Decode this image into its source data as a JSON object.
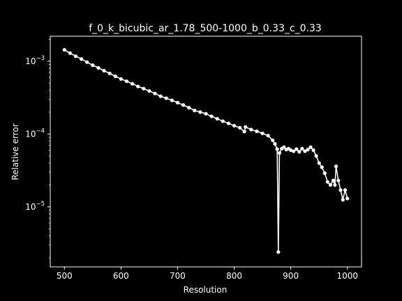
{
  "chart_data": {
    "type": "line",
    "title": "f_0_k_bicubic_ar_1.78_500-1000_b_0.33_c_0.33",
    "xlabel": "Resolution",
    "ylabel": "Relative error",
    "xlim": [
      475,
      1025
    ],
    "ylim": [
      1.5e-06,
      0.0022
    ],
    "yscale": "log",
    "x_ticks": [
      "500",
      "600",
      "700",
      "800",
      "900",
      "1000"
    ],
    "y_ticks": [
      {
        "base": "10",
        "exp": "−3",
        "value": 0.001
      },
      {
        "base": "10",
        "exp": "−4",
        "value": 0.0001
      },
      {
        "base": "10",
        "exp": "−5",
        "value": 1e-05
      }
    ],
    "grid": false,
    "legend": "none",
    "colors": {
      "background": "#000000",
      "line": "#ffffff"
    },
    "series": [
      {
        "x": [
          500,
          510,
          520,
          530,
          540,
          550,
          560,
          570,
          580,
          590,
          600,
          610,
          620,
          630,
          640,
          650,
          660,
          670,
          680,
          690,
          700,
          710,
          720,
          730,
          740,
          750,
          760,
          770,
          780,
          790,
          800,
          810,
          818,
          820,
          830,
          840,
          850,
          860,
          868,
          872,
          876,
          878,
          880,
          884,
          888,
          892,
          896,
          900,
          905,
          910,
          915,
          920,
          925,
          930,
          935,
          940,
          945,
          950,
          955,
          960,
          965,
          970,
          975,
          978,
          980,
          984,
          988,
          992,
          996,
          1000
        ],
        "values": [
          0.00143,
          0.00129,
          0.00117,
          0.00107,
          0.00097,
          0.00088,
          0.00081,
          0.00074,
          0.00068,
          0.00062,
          0.00057,
          0.00053,
          0.00049,
          0.00045,
          0.00042,
          0.00039,
          0.00036,
          0.00033,
          0.00031,
          0.00029,
          0.00027,
          0.00025,
          0.00023,
          0.00021,
          0.0002,
          0.00019,
          0.000175,
          0.000162,
          0.00015,
          0.00014,
          0.00013,
          0.000122,
          0.000108,
          0.000125,
          0.000115,
          0.000109,
          0.000102,
          9.5e-05,
          8.2e-05,
          7.3e-05,
          6.2e-05,
          2.4e-06,
          5.5e-05,
          6.3e-05,
          6.6e-05,
          6.1e-05,
          6.3e-05,
          6e-05,
          5.8e-05,
          6.2e-05,
          5.7e-05,
          6.3e-05,
          5.8e-05,
          6.1e-05,
          6.6e-05,
          6e-05,
          5e-05,
          4e-05,
          3.5e-05,
          2.9e-05,
          2.2e-05,
          2e-05,
          2.3e-05,
          2e-05,
          3.6e-05,
          2.3e-05,
          1.7e-05,
          1.25e-05,
          1.7e-05,
          1.3e-05
        ]
      }
    ]
  }
}
